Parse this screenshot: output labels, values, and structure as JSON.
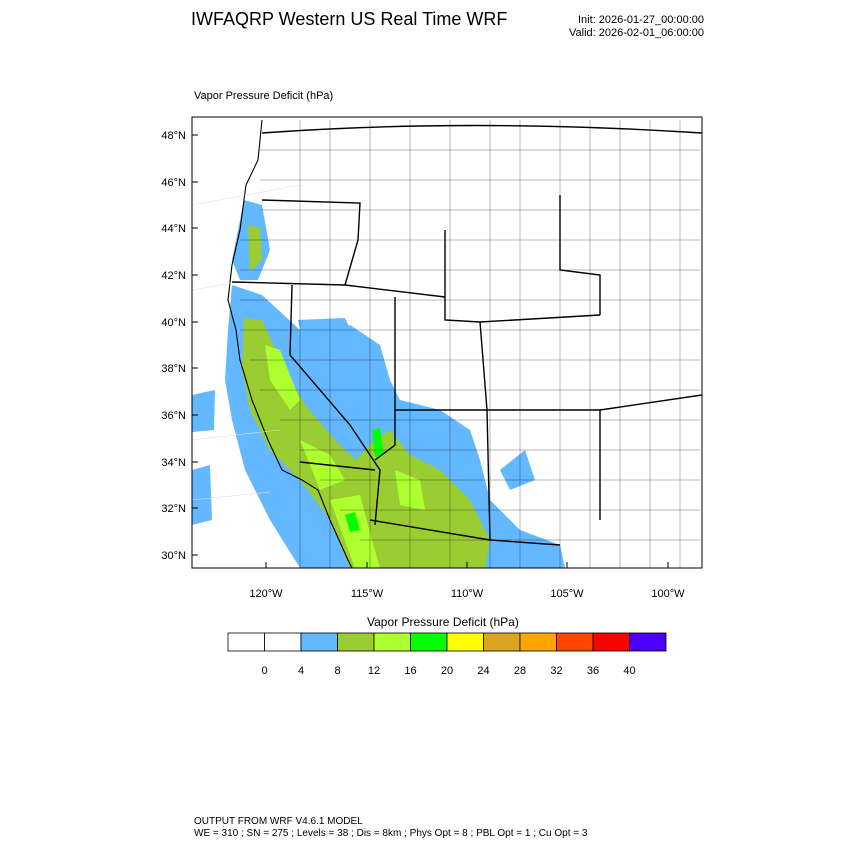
{
  "header": {
    "title": "IWFAQRP Western US Real Time WRF",
    "init": "Init: 2026-01-27_00:00:00",
    "valid": "Valid: 2026-02-01_06:00:00"
  },
  "map": {
    "field_label": "Vapor Pressure Deficit   (hPa)",
    "lat_labels": [
      "48°N",
      "46°N",
      "44°N",
      "42°N",
      "40°N",
      "38°N",
      "36°N",
      "34°N",
      "32°N",
      "30°N"
    ],
    "lon_labels": [
      "120°W",
      "115°W",
      "110°W",
      "105°W",
      "100°W"
    ]
  },
  "colorbar": {
    "title": "Vapor Pressure Deficit  (hPa)",
    "colors": [
      "#ffffff",
      "#ffffff",
      "#63b8ff",
      "#9acd32",
      "#adff2f",
      "#00ff00",
      "#ffff00",
      "#daa520",
      "#ffa500",
      "#ff4500",
      "#ff0000",
      "#4b00ff"
    ],
    "tick_labels": [
      "0",
      "4",
      "8",
      "12",
      "16",
      "20",
      "24",
      "28",
      "32",
      "36",
      "40"
    ]
  },
  "footer": {
    "line1": "OUTPUT FROM WRF V4.6.1 MODEL",
    "line2": "WE = 310 ; SN = 275 ; Levels = 38 ; Dis = 8km ; Phys Opt = 8 ; PBL Opt = 1 ; Cu Opt = 3"
  }
}
